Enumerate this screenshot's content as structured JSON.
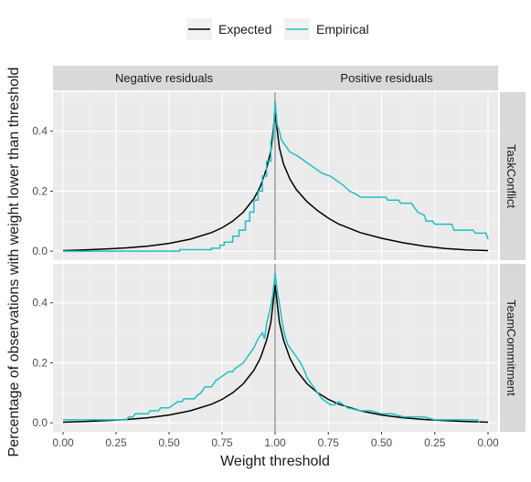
{
  "chart_data": {
    "type": "line",
    "xlabel": "Weight threshold",
    "ylabel": "Percentage of observations with weight lower than threshold",
    "x_ticks": [
      "0.00",
      "0.25",
      "0.50",
      "0.75",
      "1.00",
      "0.75",
      "0.50",
      "0.25",
      "0.00"
    ],
    "y_ticks": [
      "0.0",
      "0.2",
      "0.4"
    ],
    "ylim": [
      -0.03,
      0.53
    ],
    "col_facets": [
      "Negative residuals",
      "Positive residuals"
    ],
    "row_facets": [
      "TaskConflict",
      "TeamCommitment"
    ],
    "legend": {
      "position": "top",
      "entries": [
        {
          "name": "Expected",
          "color": "#000000"
        },
        {
          "name": "Empirical",
          "color": "#1fbfc4"
        }
      ]
    },
    "vline": {
      "x": 1.0,
      "color": "#a0a0a0"
    },
    "panels": [
      {
        "row": "TaskConflict",
        "expected": {
          "neg": [
            [
              0,
              0.002
            ],
            [
              0.1,
              0.004
            ],
            [
              0.2,
              0.007
            ],
            [
              0.3,
              0.011
            ],
            [
              0.4,
              0.017
            ],
            [
              0.5,
              0.026
            ],
            [
              0.6,
              0.04
            ],
            [
              0.7,
              0.062
            ],
            [
              0.75,
              0.078
            ],
            [
              0.8,
              0.1
            ],
            [
              0.85,
              0.13
            ],
            [
              0.9,
              0.175
            ],
            [
              0.93,
              0.215
            ],
            [
              0.96,
              0.275
            ],
            [
              0.98,
              0.335
            ],
            [
              1.0,
              0.46
            ]
          ],
          "pos": [
            [
              1.0,
              0.46
            ],
            [
              0.98,
              0.345
            ],
            [
              0.96,
              0.29
            ],
            [
              0.93,
              0.24
            ],
            [
              0.9,
              0.205
            ],
            [
              0.85,
              0.165
            ],
            [
              0.8,
              0.135
            ],
            [
              0.75,
              0.11
            ],
            [
              0.7,
              0.09
            ],
            [
              0.6,
              0.062
            ],
            [
              0.5,
              0.043
            ],
            [
              0.4,
              0.028
            ],
            [
              0.3,
              0.017
            ],
            [
              0.2,
              0.009
            ],
            [
              0.1,
              0.004
            ],
            [
              0.0,
              0.002
            ]
          ]
        },
        "empirical": {
          "neg": [
            [
              0,
              0.0
            ],
            [
              0.3,
              0.0
            ],
            [
              0.55,
              0.0
            ],
            [
              0.55,
              0.005
            ],
            [
              0.7,
              0.005
            ],
            [
              0.7,
              0.01
            ],
            [
              0.74,
              0.01
            ],
            [
              0.74,
              0.02
            ],
            [
              0.76,
              0.02
            ],
            [
              0.76,
              0.03
            ],
            [
              0.8,
              0.03
            ],
            [
              0.8,
              0.05
            ],
            [
              0.83,
              0.05
            ],
            [
              0.83,
              0.07
            ],
            [
              0.86,
              0.07
            ],
            [
              0.86,
              0.1
            ],
            [
              0.88,
              0.1
            ],
            [
              0.88,
              0.13
            ],
            [
              0.9,
              0.13
            ],
            [
              0.9,
              0.17
            ],
            [
              0.92,
              0.17
            ],
            [
              0.92,
              0.2
            ],
            [
              0.94,
              0.2
            ],
            [
              0.94,
              0.25
            ],
            [
              0.96,
              0.25
            ],
            [
              0.96,
              0.3
            ],
            [
              0.98,
              0.3
            ],
            [
              0.98,
              0.37
            ],
            [
              0.99,
              0.37
            ],
            [
              1.0,
              0.5
            ]
          ],
          "pos": [
            [
              1.0,
              0.5
            ],
            [
              0.99,
              0.42
            ],
            [
              0.98,
              0.4
            ],
            [
              0.97,
              0.37
            ],
            [
              0.95,
              0.35
            ],
            [
              0.93,
              0.33
            ],
            [
              0.9,
              0.32
            ],
            [
              0.88,
              0.31
            ],
            [
              0.86,
              0.3
            ],
            [
              0.84,
              0.29
            ],
            [
              0.82,
              0.28
            ],
            [
              0.8,
              0.27
            ],
            [
              0.78,
              0.26
            ],
            [
              0.74,
              0.25
            ],
            [
              0.72,
              0.24
            ],
            [
              0.7,
              0.23
            ],
            [
              0.68,
              0.22
            ],
            [
              0.65,
              0.2
            ],
            [
              0.62,
              0.19
            ],
            [
              0.6,
              0.18
            ],
            [
              0.48,
              0.18
            ],
            [
              0.47,
              0.17
            ],
            [
              0.42,
              0.17
            ],
            [
              0.41,
              0.16
            ],
            [
              0.36,
              0.16
            ],
            [
              0.35,
              0.15
            ],
            [
              0.33,
              0.13
            ],
            [
              0.3,
              0.12
            ],
            [
              0.29,
              0.1
            ],
            [
              0.26,
              0.1
            ],
            [
              0.25,
              0.09
            ],
            [
              0.17,
              0.09
            ],
            [
              0.16,
              0.07
            ],
            [
              0.07,
              0.07
            ],
            [
              0.06,
              0.06
            ],
            [
              0.01,
              0.06
            ],
            [
              0.0,
              0.04
            ]
          ]
        }
      },
      {
        "row": "TeamCommitment",
        "expected": {
          "neg": [
            [
              0,
              0.002
            ],
            [
              0.1,
              0.004
            ],
            [
              0.2,
              0.007
            ],
            [
              0.3,
              0.011
            ],
            [
              0.4,
              0.017
            ],
            [
              0.5,
              0.026
            ],
            [
              0.6,
              0.04
            ],
            [
              0.7,
              0.062
            ],
            [
              0.75,
              0.078
            ],
            [
              0.8,
              0.1
            ],
            [
              0.85,
              0.13
            ],
            [
              0.9,
              0.175
            ],
            [
              0.93,
              0.215
            ],
            [
              0.96,
              0.275
            ],
            [
              0.98,
              0.335
            ],
            [
              1.0,
              0.46
            ]
          ],
          "pos": [
            [
              1.0,
              0.46
            ],
            [
              0.98,
              0.335
            ],
            [
              0.96,
              0.275
            ],
            [
              0.93,
              0.215
            ],
            [
              0.9,
              0.175
            ],
            [
              0.85,
              0.13
            ],
            [
              0.8,
              0.1
            ],
            [
              0.75,
              0.078
            ],
            [
              0.7,
              0.062
            ],
            [
              0.6,
              0.04
            ],
            [
              0.5,
              0.026
            ],
            [
              0.4,
              0.017
            ],
            [
              0.3,
              0.011
            ],
            [
              0.2,
              0.007
            ],
            [
              0.1,
              0.004
            ],
            [
              0.0,
              0.002
            ]
          ]
        },
        "empirical": {
          "neg": [
            [
              0,
              0.01
            ],
            [
              0.3,
              0.01
            ],
            [
              0.31,
              0.02
            ],
            [
              0.33,
              0.02
            ],
            [
              0.34,
              0.03
            ],
            [
              0.4,
              0.03
            ],
            [
              0.41,
              0.04
            ],
            [
              0.45,
              0.04
            ],
            [
              0.46,
              0.05
            ],
            [
              0.5,
              0.05
            ],
            [
              0.52,
              0.06
            ],
            [
              0.54,
              0.07
            ],
            [
              0.56,
              0.07
            ],
            [
              0.57,
              0.08
            ],
            [
              0.62,
              0.08
            ],
            [
              0.63,
              0.09
            ],
            [
              0.65,
              0.1
            ],
            [
              0.67,
              0.12
            ],
            [
              0.7,
              0.12
            ],
            [
              0.71,
              0.13
            ],
            [
              0.72,
              0.14
            ],
            [
              0.74,
              0.15
            ],
            [
              0.76,
              0.16
            ],
            [
              0.78,
              0.17
            ],
            [
              0.8,
              0.17
            ],
            [
              0.81,
              0.18
            ],
            [
              0.83,
              0.19
            ],
            [
              0.85,
              0.2
            ],
            [
              0.87,
              0.22
            ],
            [
              0.89,
              0.24
            ],
            [
              0.9,
              0.25
            ],
            [
              0.92,
              0.28
            ],
            [
              0.94,
              0.3
            ],
            [
              0.95,
              0.28
            ],
            [
              0.96,
              0.33
            ],
            [
              0.97,
              0.36
            ],
            [
              0.98,
              0.39
            ],
            [
              0.99,
              0.43
            ],
            [
              1.0,
              0.5
            ]
          ],
          "pos": [
            [
              1.0,
              0.5
            ],
            [
              0.99,
              0.44
            ],
            [
              0.98,
              0.4
            ],
            [
              0.97,
              0.35
            ],
            [
              0.96,
              0.31
            ],
            [
              0.95,
              0.28
            ],
            [
              0.94,
              0.26
            ],
            [
              0.92,
              0.24
            ],
            [
              0.9,
              0.22
            ],
            [
              0.88,
              0.2
            ],
            [
              0.86,
              0.17
            ],
            [
              0.85,
              0.15
            ],
            [
              0.84,
              0.14
            ],
            [
              0.82,
              0.12
            ],
            [
              0.8,
              0.1
            ],
            [
              0.79,
              0.09
            ],
            [
              0.78,
              0.08
            ],
            [
              0.76,
              0.07
            ],
            [
              0.74,
              0.06
            ],
            [
              0.72,
              0.06
            ],
            [
              0.7,
              0.07
            ],
            [
              0.68,
              0.06
            ],
            [
              0.66,
              0.05
            ],
            [
              0.6,
              0.04
            ],
            [
              0.55,
              0.04
            ],
            [
              0.5,
              0.03
            ],
            [
              0.45,
              0.03
            ],
            [
              0.4,
              0.02
            ],
            [
              0.3,
              0.02
            ],
            [
              0.25,
              0.01
            ],
            [
              0.05,
              0.01
            ],
            [
              0.04,
              0.0
            ]
          ]
        }
      }
    ]
  }
}
